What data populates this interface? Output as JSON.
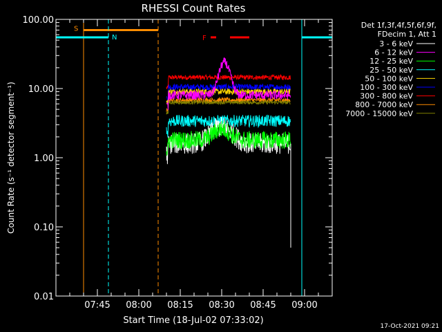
{
  "chart_data": {
    "type": "line",
    "title": "RHESSI Count Rates",
    "xlabel": "Start Time (18-Jul-02 07:33:02)",
    "ylabel": "Count Rate (s⁻¹ detector segment⁻¹)",
    "yscale": "log",
    "ylim": [
      0.01,
      100
    ],
    "xlim_minutes_after_07_30": [
      0,
      100
    ],
    "y_ticks": [
      {
        "value": 0.01,
        "label": "0.01"
      },
      {
        "value": 0.1,
        "label": "0.10"
      },
      {
        "value": 1,
        "label": "1.00"
      },
      {
        "value": 10,
        "label": "10.00"
      },
      {
        "value": 100,
        "label": "100.00"
      }
    ],
    "x_ticks": [
      {
        "value": 15,
        "label": "07:45"
      },
      {
        "value": 30,
        "label": "08:00"
      },
      {
        "value": 45,
        "label": "08:15"
      },
      {
        "value": 60,
        "label": "08:30"
      },
      {
        "value": 75,
        "label": "08:45"
      },
      {
        "value": 90,
        "label": "09:00"
      }
    ],
    "legend_header": [
      "Det 1f,3f,4f,5f,6f,9f,",
      "FDecim 1, Att 1"
    ],
    "data_window": [
      40,
      85
    ],
    "series": [
      {
        "name": "3 - 6 keV",
        "color": "#ffffff",
        "base": 1.6,
        "noise": 0.35,
        "peak": {
          "t": 60,
          "amp": 1.2,
          "w": 5
        }
      },
      {
        "name": "6 - 12 keV",
        "color": "#ff00ff",
        "base": 8.0,
        "noise": 0.15,
        "peak": {
          "t": 61,
          "amp": 16,
          "w": 2.5
        }
      },
      {
        "name": "12 - 25 keV",
        "color": "#00ff00",
        "base": 1.8,
        "noise": 0.3,
        "peak": {
          "t": 60,
          "amp": 0.8,
          "w": 4
        }
      },
      {
        "name": "25 - 50 keV",
        "color": "#00ffff",
        "base": 3.4,
        "noise": 0.2,
        "peak": null
      },
      {
        "name": "50 - 100 keV",
        "color": "#ffd700",
        "base": 9.0,
        "noise": 0.1,
        "peak": null
      },
      {
        "name": "100 - 300 keV",
        "color": "#0000ff",
        "base": 10.5,
        "noise": 0.1,
        "peak": null
      },
      {
        "name": "300 - 800 keV",
        "color": "#ff0000",
        "base": 14.5,
        "noise": 0.08,
        "peak": null
      },
      {
        "name": "800 - 7000 keV",
        "color": "#ff8c00",
        "base": 6.8,
        "noise": 0.08,
        "peak": null
      },
      {
        "name": "7000 - 15000 keV",
        "color": "#808000",
        "base": 6.3,
        "noise": 0.06,
        "peak": null
      }
    ],
    "annotations": {
      "saa_label": "S",
      "saa_interval": [
        10,
        37
      ],
      "night_label": "N",
      "night_intervals": [
        [
          0,
          19
        ],
        [
          89,
          100
        ]
      ],
      "flare_label": "F",
      "flare_intervals": [
        [
          56,
          58
        ],
        [
          63,
          70
        ]
      ],
      "night_level": 55,
      "saa_level": 70,
      "flare_level": 55
    },
    "timestamp": "17-Oct-2021 09:21"
  }
}
